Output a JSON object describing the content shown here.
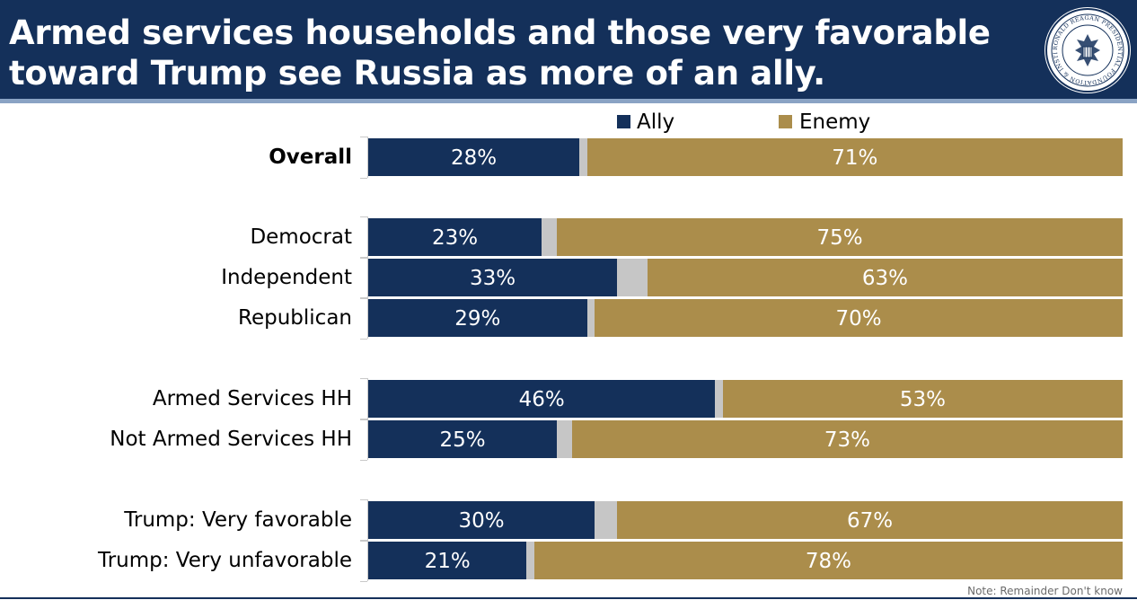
{
  "title_line1": "Armed services households and those very favorable",
  "title_line2": "toward Trump see Russia as more of an ally.",
  "logo": {
    "name": "Ronald Reagan Presidential Foundation & Institute seal",
    "text": "RONALD REAGAN PRESIDENTIAL FOUNDATION & INSTITUTE"
  },
  "note": "Note: Remainder Don't know",
  "colors": {
    "header": "#14305a",
    "ally": "#14305a",
    "enemy": "#ab8d4b",
    "dont_know": "#c6c6c6"
  },
  "chart_data": {
    "type": "bar",
    "orientation": "horizontal-stacked-100",
    "title": "Armed services households and those very favorable toward Trump see Russia as more of an ally.",
    "legend": {
      "placement": "top",
      "entries": [
        "Ally",
        "Enemy"
      ]
    },
    "categories": [
      "Overall",
      "Democrat",
      "Independent",
      "Republican",
      "Armed Services HH",
      "Not Armed Services HH",
      "Trump: Very favorable",
      "Trump: Very unfavorable"
    ],
    "groups": [
      [
        0
      ],
      [
        1,
        2,
        3
      ],
      [
        4,
        5
      ],
      [
        6,
        7
      ]
    ],
    "bold_categories": [
      "Overall"
    ],
    "series": [
      {
        "name": "Ally",
        "values": [
          28,
          23,
          33,
          29,
          46,
          25,
          30,
          21
        ],
        "labels": [
          "28%",
          "23%",
          "33%",
          "29%",
          "46%",
          "25%",
          "30%",
          "21%"
        ]
      },
      {
        "name": "Enemy",
        "values": [
          71,
          75,
          63,
          70,
          53,
          73,
          67,
          78
        ],
        "labels": [
          "71%",
          "75%",
          "63%",
          "70%",
          "53%",
          "73%",
          "67%",
          "78%"
        ]
      }
    ],
    "remainder_label": "Don't know",
    "xlim": [
      0,
      100
    ],
    "grid": false
  }
}
